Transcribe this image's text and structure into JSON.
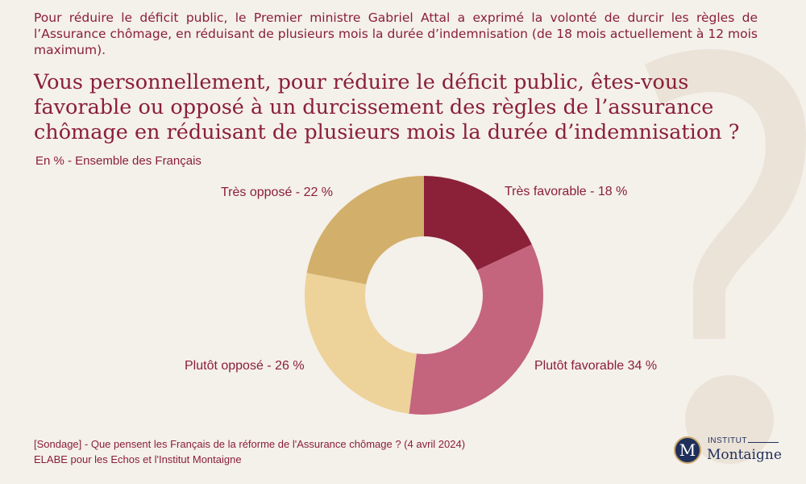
{
  "intro": "Pour réduire le déficit public, le Premier ministre Gabriel Attal a exprimé la volonté de durcir les règles de l’Assurance chômage, en réduisant de plusieurs mois la durée d’indemnisation (de 18 mois actuellement à 12 mois maximum).",
  "question": "Vous personnellement, pour réduire le déficit public, êtes-vous favorable ou opposé à un durcissement des règles de l’assurance chômage en réduisant de plusieurs mois la durée d’indemnisation ?",
  "unit": "En % - Ensemble des Français",
  "source_line1": "[Sondage] - Que pensent les Français de la réforme de l'Assurance chômage ? (4 avril 2024)",
  "source_line2": "ELABE pour les Echos et l'Institut Montaigne",
  "logo": {
    "badge": "M",
    "institut": "INSTITUT",
    "name": "Montaigne"
  },
  "chart_data": {
    "type": "pie",
    "donut": true,
    "title": "",
    "categories": [
      "Très favorable",
      "Plutôt favorable",
      "Plutôt opposé",
      "Très opposé"
    ],
    "values": [
      18,
      34,
      26,
      22
    ],
    "labels": [
      "Très favorable - 18 %",
      "Plutôt favorable 34 %",
      "Plutôt opposé - 26 %",
      "Très opposé - 22 %"
    ],
    "colors": [
      "#8a2139",
      "#c4647d",
      "#edd29a",
      "#d2af6a"
    ]
  },
  "colors": {
    "text": "#8a1f38",
    "background": "#f4f0ea",
    "logo": "#1f2f5b"
  }
}
